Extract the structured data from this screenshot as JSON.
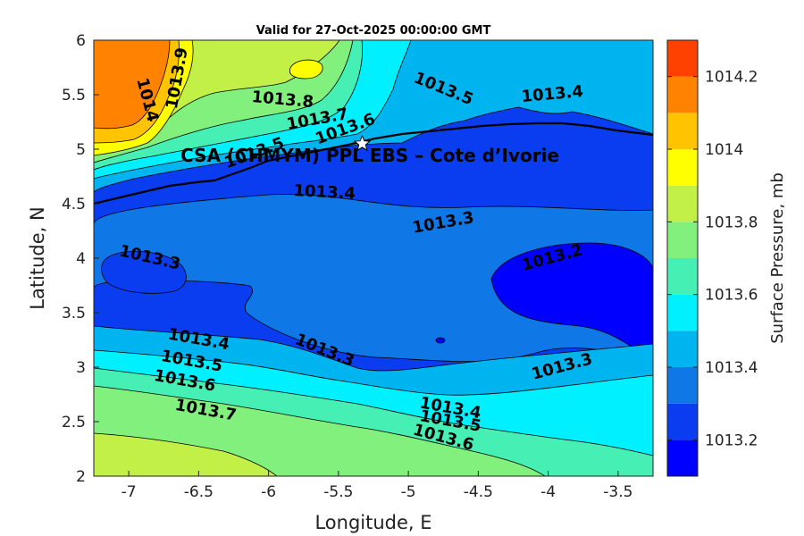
{
  "chart_data": {
    "type": "heatmap",
    "title": "Valid for 27-Oct-2025 00:00:00 GMT",
    "xlabel": "Longitude, E",
    "ylabel": "Latitude, N",
    "xlim": [
      -7.25,
      -3.25
    ],
    "ylim": [
      2,
      6
    ],
    "xticks": [
      -7,
      -6.5,
      -6,
      -5.5,
      -5,
      -4.5,
      -4,
      -3.5
    ],
    "xtick_labels": [
      "-7",
      "-6.5",
      "-6",
      "-5.5",
      "-5",
      "-4.5",
      "-4",
      "-3.5"
    ],
    "yticks": [
      2,
      2.5,
      3,
      3.5,
      4,
      4.5,
      5,
      5.5,
      6
    ],
    "ytick_labels": [
      "2",
      "2.5",
      "3",
      "3.5",
      "4",
      "4.5",
      "5",
      "5.5",
      "6"
    ],
    "colorbar": {
      "label": "Surface Pressure, mb",
      "range": [
        1013.1,
        1014.3
      ],
      "levels": [
        1013.1,
        1013.2,
        1013.3,
        1013.4,
        1013.5,
        1013.6,
        1013.7,
        1013.8,
        1013.9,
        1014.0,
        1014.1,
        1014.2,
        1014.3
      ],
      "colors": [
        "#0000ff",
        "#0a3cf0",
        "#0f78e6",
        "#00b4f0",
        "#00f0ff",
        "#46f0b4",
        "#82f07d",
        "#c3f046",
        "#ffff00",
        "#ffc300",
        "#ff8200",
        "#ff4100",
        "#ff0000"
      ],
      "ticks": [
        1013.2,
        1013.4,
        1013.6,
        1013.8,
        1014,
        1014.2
      ],
      "tick_labels": [
        "1013.2",
        "1013.4",
        "1013.6",
        "1013.8",
        "1014",
        "1014.2"
      ]
    },
    "contour_labels": [
      {
        "text": "1013.9",
        "lon": -6.65,
        "lat": 5.65,
        "angle": -80
      },
      {
        "text": "1014",
        "lon": -6.87,
        "lat": 5.45,
        "angle": 75
      },
      {
        "text": "1013.8",
        "lon": -5.9,
        "lat": 5.45,
        "angle": 5
      },
      {
        "text": "1013.7",
        "lon": -5.65,
        "lat": 5.27,
        "angle": -10
      },
      {
        "text": "1013.6",
        "lon": -5.45,
        "lat": 5.18,
        "angle": -20
      },
      {
        "text": "1013.5",
        "lon": -4.75,
        "lat": 5.55,
        "angle": 22
      },
      {
        "text": "1013.4",
        "lon": -3.97,
        "lat": 5.5,
        "angle": -5
      },
      {
        "text": "1013.5",
        "lon": -6.1,
        "lat": 4.96,
        "angle": -20
      },
      {
        "text": "1013.4",
        "lon": -5.6,
        "lat": 4.6,
        "angle": 3
      },
      {
        "text": "1013.3",
        "lon": -4.75,
        "lat": 4.32,
        "angle": -10
      },
      {
        "text": "1013.3",
        "lon": -6.85,
        "lat": 4.0,
        "angle": 13
      },
      {
        "text": "1013.2",
        "lon": -3.97,
        "lat": 4.0,
        "angle": -15
      },
      {
        "text": "1013.3",
        "lon": -5.6,
        "lat": 3.15,
        "angle": 22
      },
      {
        "text": "1013.4",
        "lon": -6.5,
        "lat": 3.25,
        "angle": 10
      },
      {
        "text": "1013.5",
        "lon": -6.55,
        "lat": 3.05,
        "angle": 10
      },
      {
        "text": "1013.6",
        "lon": -6.6,
        "lat": 2.87,
        "angle": 10
      },
      {
        "text": "1013.7",
        "lon": -6.45,
        "lat": 2.6,
        "angle": 10
      },
      {
        "text": "1013.3",
        "lon": -3.9,
        "lat": 3.0,
        "angle": -15
      },
      {
        "text": "1013.4",
        "lon": -4.7,
        "lat": 2.62,
        "angle": 10
      },
      {
        "text": "1013.5",
        "lon": -4.7,
        "lat": 2.5,
        "angle": 10
      },
      {
        "text": "1013.6",
        "lon": -4.75,
        "lat": 2.35,
        "angle": 15
      }
    ],
    "station": {
      "name": "CSA (CHMYM) PPL EBS  – Cote d’Ivorie",
      "lon": -5.33,
      "lat": 5.05
    },
    "grid": false,
    "legend": "colorbar-right"
  }
}
